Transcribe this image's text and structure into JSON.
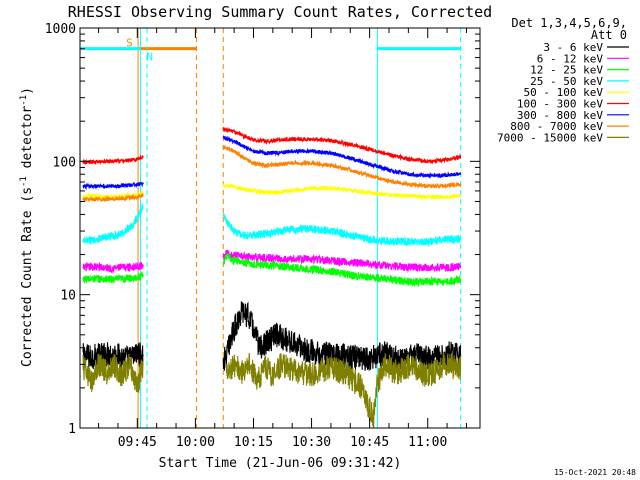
{
  "chart_data": {
    "type": "line",
    "title": "RHESSI Observing Summary Count Rates, Corrected",
    "xlabel": "Start Time (21-Jun-06 09:31:42)",
    "ylabel_main": "Corrected Count Rate (s",
    "ylabel_sup1": "-1",
    "ylabel_mid": " detector",
    "ylabel_sup2": "-1",
    "ylabel_end": ")",
    "y_scale": "log",
    "ylim": [
      1,
      1000
    ],
    "xlim_minutes": [
      570.2,
      673.5
    ],
    "x_ticks": [
      {
        "label": "09:45",
        "minutes": 585
      },
      {
        "label": "10:00",
        "minutes": 600
      },
      {
        "label": "10:15",
        "minutes": 615
      },
      {
        "label": "10:30",
        "minutes": 630
      },
      {
        "label": "10:45",
        "minutes": 645
      },
      {
        "label": "11:00",
        "minutes": 660
      }
    ],
    "y_ticks": [
      {
        "label": "1",
        "value": 1
      },
      {
        "label": "10",
        "value": 10
      },
      {
        "label": "100",
        "value": 100
      },
      {
        "label": "1000",
        "value": 1000
      }
    ],
    "legend_header": [
      "Det 1,3,4,5,6,9,",
      "Att 0"
    ],
    "legend_position": "right",
    "series": [
      {
        "name": "3 - 6 keV",
        "color": "#000000",
        "segments": [
          {
            "t": [
              571,
              573,
              577,
              580,
              583,
              585,
              586.5
            ],
            "v": [
              3.5,
              3.4,
              3.6,
              3.5,
              3.3,
              3.6,
              3.5
            ]
          },
          {
            "t": [
              607.2,
              608,
              609,
              610,
              611,
              612,
              613,
              614,
              615,
              616,
              617,
              619,
              621,
              623,
              626,
              629,
              633,
              637,
              641,
              645,
              649,
              653,
              657,
              661,
              665,
              668.5
            ],
            "v": [
              3.2,
              3.4,
              4.5,
              5.5,
              6.5,
              7.5,
              7.2,
              6.8,
              5.5,
              4.5,
              4.0,
              4.5,
              5.0,
              4.7,
              4.2,
              3.8,
              3.6,
              3.5,
              3.4,
              3.3,
              3.6,
              3.2,
              3.5,
              3.3,
              3.6,
              3.5
            ]
          }
        ]
      },
      {
        "name": "6 - 12 keV",
        "color": "#ff00ff",
        "segments": [
          {
            "t": [
              571,
              574,
              578,
              582,
              585,
              586.5
            ],
            "v": [
              16.0,
              16.2,
              15.8,
              16.0,
              16.3,
              16.5
            ]
          },
          {
            "t": [
              607.2,
              608,
              610,
              615,
              620,
              625,
              630,
              635,
              640,
              645,
              650,
              655,
              660,
              665,
              668.5
            ],
            "v": [
              18.5,
              20.5,
              19.5,
              19.0,
              18.8,
              18.5,
              18.5,
              18.0,
              17.5,
              17.0,
              16.5,
              16.0,
              16.0,
              16.0,
              16.2
            ]
          }
        ]
      },
      {
        "name": "12 - 25 keV",
        "color": "#00ff00",
        "segments": [
          {
            "t": [
              571,
              574,
              578,
              582,
              585,
              586.5
            ],
            "v": [
              13.0,
              13.2,
              13.0,
              13.2,
              13.5,
              13.8
            ]
          },
          {
            "t": [
              607.2,
              608,
              610,
              615,
              620,
              625,
              630,
              635,
              640,
              645,
              650,
              655,
              660,
              665,
              668.5
            ],
            "v": [
              17.0,
              19.5,
              18.0,
              17.0,
              16.5,
              16.0,
              15.5,
              15.0,
              14.0,
              13.5,
              13.0,
              12.5,
              12.5,
              12.5,
              13.0
            ]
          }
        ]
      },
      {
        "name": "25 - 50 keV",
        "color": "#00ffff",
        "segments": [
          {
            "t": [
              571,
              574,
              577,
              580,
              582,
              584,
              585.5,
              586.5
            ],
            "v": [
              25,
              26,
              27,
              28,
              30,
              34,
              40,
              47
            ]
          },
          {
            "t": [
              607.2,
              608,
              610,
              612,
              615,
              620,
              625,
              630,
              635,
              640,
              645,
              650,
              655,
              660,
              665,
              668.5
            ],
            "v": [
              39,
              36,
              30,
              28,
              28,
              29,
              31,
              31,
              30,
              28,
              26,
              25,
              25,
              25,
              26,
              26
            ]
          }
        ]
      },
      {
        "name": "50 - 100 keV",
        "color": "#ffff00",
        "segments": [
          {
            "t": [
              571,
              574,
              578,
              582,
              585,
              586.5
            ],
            "v": [
              55,
              55,
              54,
              55,
              56,
              58
            ]
          },
          {
            "t": [
              607.2,
              610,
              615,
              620,
              625,
              630,
              635,
              640,
              645,
              650,
              655,
              660,
              665,
              668.5
            ],
            "v": [
              67,
              64,
              60,
              58,
              60,
              63,
              63,
              61,
              58,
              56,
              55,
              54,
              54,
              55
            ]
          }
        ]
      },
      {
        "name": "100 - 300 keV",
        "color": "#ff0000",
        "segments": [
          {
            "t": [
              571,
              574,
              578,
              582,
              585,
              586.5
            ],
            "v": [
              98,
              99,
              100,
              101,
              104,
              108
            ]
          },
          {
            "t": [
              607.2,
              609,
              611,
              613,
              615,
              618,
              621,
              625,
              630,
              635,
              640,
              645,
              650,
              655,
              660,
              665,
              668.5
            ],
            "v": [
              175,
              170,
              162,
              152,
              145,
              142,
              144,
              147,
              146,
              143,
              134,
              123,
              112,
              104,
              100,
              103,
              108
            ]
          }
        ]
      },
      {
        "name": "300 - 800 keV",
        "color": "#0000ff",
        "segments": [
          {
            "t": [
              571,
              574,
              578,
              582,
              585,
              586.5
            ],
            "v": [
              65,
              65,
              65,
              66,
              67,
              68
            ]
          },
          {
            "t": [
              607.2,
              609,
              611,
              613,
              615,
              618,
              621,
              625,
              630,
              635,
              640,
              645,
              650,
              655,
              660,
              665,
              668.5
            ],
            "v": [
              150,
              145,
              137,
              127,
              120,
              115,
              116,
              119,
              119,
              115,
              106,
              95,
              86,
              80,
              78,
              79,
              80
            ]
          }
        ]
      },
      {
        "name": "800 - 7000 keV",
        "color": "#ff8000",
        "segments": [
          {
            "t": [
              571,
              574,
              578,
              582,
              585,
              586.5
            ],
            "v": [
              52,
              52,
              52,
              53,
              54,
              56
            ]
          },
          {
            "t": [
              607.2,
              609,
              611,
              613,
              615,
              618,
              621,
              625,
              630,
              635,
              640,
              645,
              650,
              655,
              660,
              665,
              668.5
            ],
            "v": [
              128,
              122,
              114,
              104,
              97,
              93,
              94,
              97,
              97,
              93,
              86,
              78,
              71,
              67,
              65,
              66,
              67
            ]
          }
        ]
      },
      {
        "name": "7000 - 15000 keV",
        "color": "#808000",
        "segments": [
          {
            "t": [
              571,
              573,
              575,
              577,
              579,
              581,
              583,
              585,
              586.5
            ],
            "v": [
              2.9,
              2.2,
              3.0,
              2.6,
              3.0,
              2.5,
              3.0,
              2.1,
              3.0
            ]
          },
          {
            "t": [
              608,
              610,
              612,
              614,
              616,
              618,
              620,
              622,
              626,
              630,
              635,
              640,
              643,
              645,
              646,
              647,
              649,
              652,
              656,
              660,
              664,
              668.5
            ],
            "v": [
              2.5,
              3.0,
              2.6,
              3.0,
              2.2,
              2.9,
              2.4,
              3.0,
              2.7,
              2.5,
              2.9,
              2.4,
              2.0,
              1.4,
              1.2,
              2.2,
              2.9,
              2.6,
              3.0,
              2.4,
              3.0,
              2.8
            ]
          }
        ]
      }
    ],
    "annotations": [
      {
        "label": "S",
        "color": "#ff8000",
        "style": "solid",
        "t": 585.2,
        "level": 700,
        "bar_end": 600.3
      },
      {
        "label": "N",
        "color": "#00ffff",
        "style": "solid",
        "t": 585.8,
        "level": 700,
        "bar_start": 570.2,
        "bar_end": 585.8
      },
      {
        "label": "",
        "color": "#00ffff",
        "style": "dashed",
        "t": 587.5
      },
      {
        "label": "",
        "color": "#ff8000",
        "style": "dashed",
        "t": 600.3
      },
      {
        "label": "",
        "color": "#ff8000",
        "style": "dashed",
        "t": 607.2
      },
      {
        "label": "",
        "color": "#00ffff",
        "style": "solid",
        "t": 647.0,
        "level": 700,
        "bar_end": 668.5
      },
      {
        "label": "",
        "color": "#00ffff",
        "style": "dashed",
        "t": 668.5
      },
      {
        "label": "",
        "color": "#00ffff",
        "style": "solid",
        "t": 570.2
      }
    ]
  },
  "footer": {
    "date_stamp": "15-Oct-2021 20:48"
  }
}
